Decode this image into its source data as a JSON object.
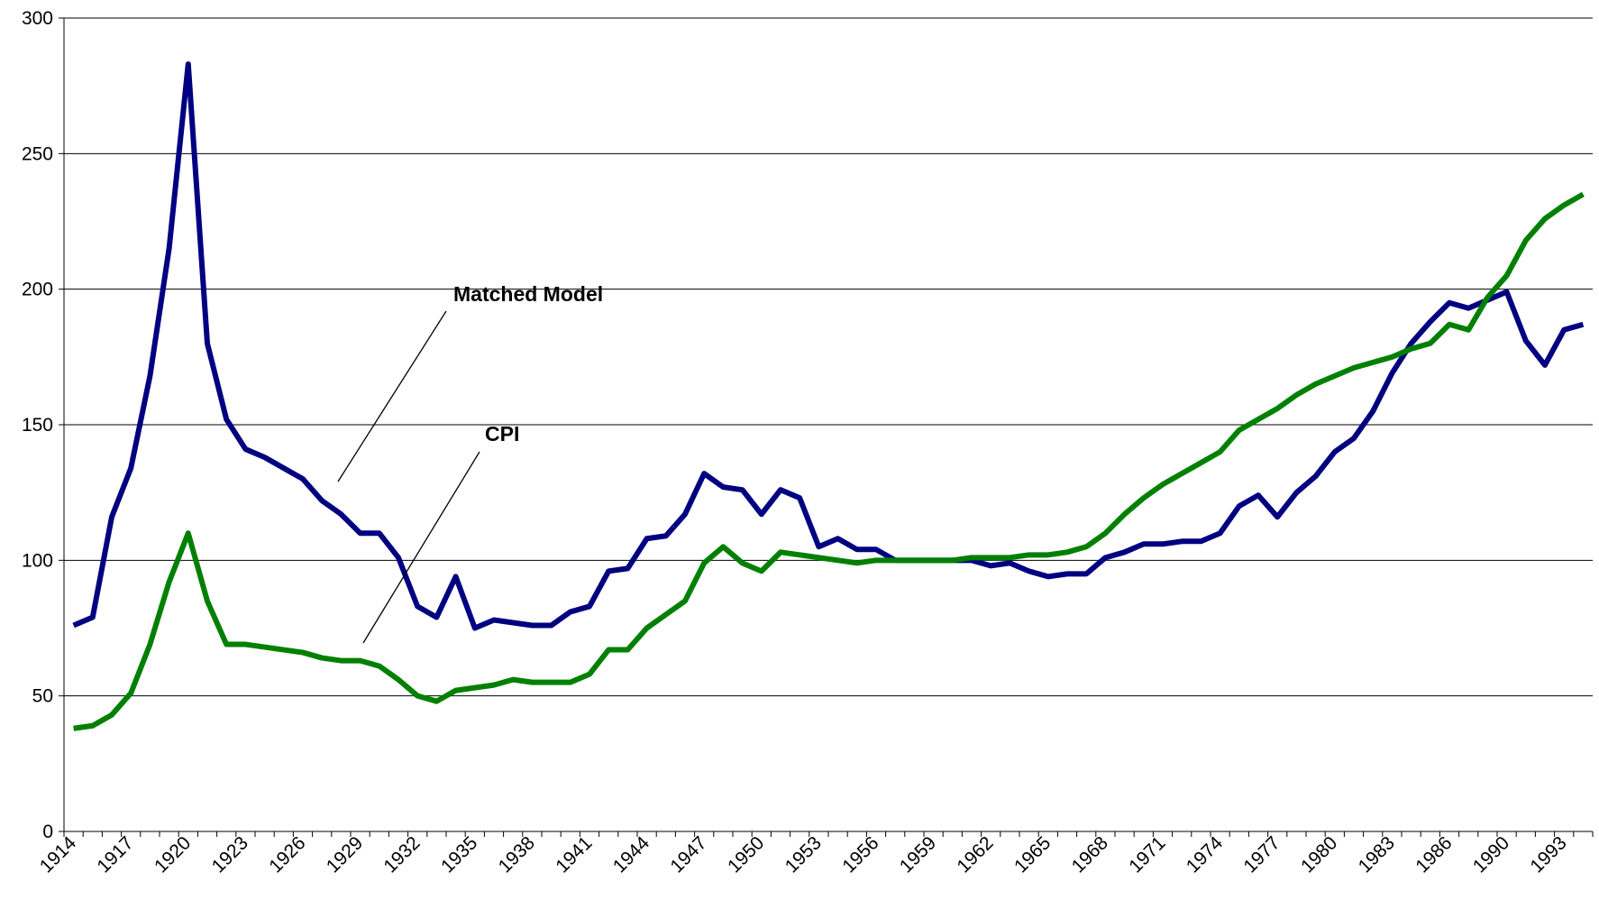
{
  "chart_data": {
    "type": "line",
    "categories": [
      "1914",
      null,
      null,
      "1917",
      null,
      null,
      "1920",
      null,
      null,
      "1923",
      null,
      null,
      "1926",
      null,
      null,
      "1929",
      null,
      null,
      "1932",
      null,
      null,
      "1935",
      null,
      null,
      "1938",
      null,
      null,
      "1941",
      null,
      null,
      "1944",
      null,
      null,
      "1947",
      null,
      null,
      "1950",
      null,
      null,
      "1953",
      null,
      null,
      "1956",
      null,
      null,
      "1959",
      null,
      null,
      "1962",
      null,
      null,
      "1965",
      null,
      null,
      "1968",
      null,
      null,
      "1971",
      null,
      null,
      "1974",
      null,
      null,
      "1977",
      null,
      null,
      "1980",
      null,
      null,
      "1983",
      null,
      null,
      "1986",
      null,
      null,
      "1990",
      null,
      null,
      "1993",
      null
    ],
    "series": [
      {
        "name": "Matched Model",
        "color": "#000080",
        "values": [
          76,
          79,
          116,
          134,
          168,
          215,
          283,
          180,
          152,
          141,
          138,
          134,
          130,
          122,
          117,
          110,
          110,
          101,
          83,
          79,
          94,
          75,
          78,
          77,
          76,
          76,
          81,
          83,
          96,
          97,
          108,
          109,
          117,
          132,
          127,
          126,
          117,
          126,
          123,
          105,
          108,
          104,
          104,
          100,
          100,
          100,
          100,
          100,
          98,
          99,
          96,
          94,
          95,
          95,
          101,
          103,
          106,
          106,
          107,
          107,
          110,
          120,
          124,
          116,
          125,
          131,
          140,
          145,
          155,
          169,
          180,
          188,
          195,
          193,
          196,
          199,
          181,
          172,
          185,
          187
        ]
      },
      {
        "name": "CPI",
        "color": "#008000",
        "values": [
          38,
          39,
          43,
          51,
          69,
          92,
          110,
          85,
          69,
          69,
          68,
          67,
          66,
          64,
          63,
          63,
          61,
          56,
          50,
          48,
          52,
          53,
          54,
          56,
          55,
          55,
          55,
          58,
          67,
          67,
          75,
          80,
          85,
          99,
          105,
          99,
          96,
          103,
          102,
          101,
          100,
          99,
          100,
          100,
          100,
          100,
          100,
          101,
          101,
          101,
          102,
          102,
          103,
          105,
          110,
          117,
          123,
          128,
          132,
          136,
          140,
          148,
          152,
          156,
          161,
          165,
          168,
          171,
          173,
          175,
          178,
          180,
          187,
          185,
          197,
          205,
          218,
          226,
          231,
          235
        ]
      }
    ],
    "annotations": [
      "Matched Model",
      "CPI"
    ],
    "ylim": [
      0,
      300
    ],
    "yticks": [
      0,
      50,
      100,
      150,
      200,
      250,
      300
    ],
    "grid": true
  }
}
